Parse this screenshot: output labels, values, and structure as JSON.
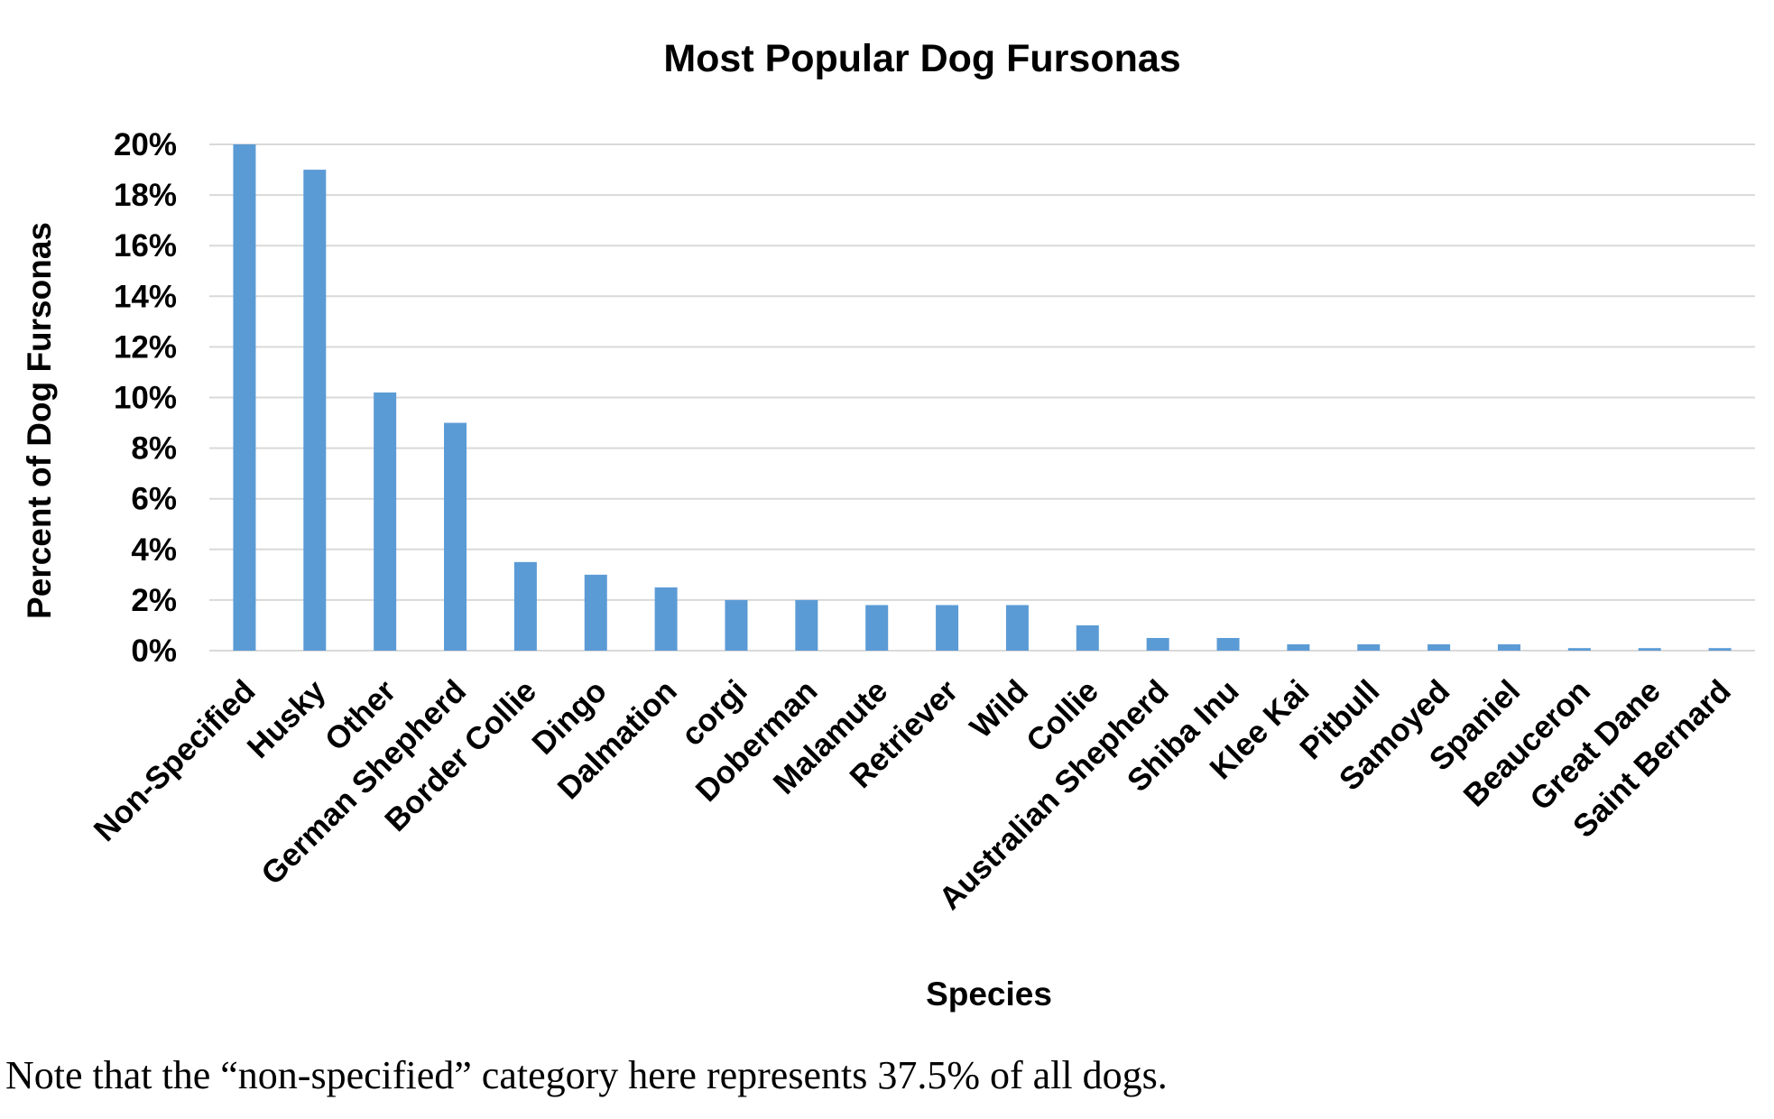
{
  "chart_data": {
    "type": "bar",
    "title": "Most Popular Dog Fursonas",
    "xlabel": "Species",
    "ylabel": "Percent of Dog Fursonas",
    "ylim": [
      0,
      20
    ],
    "y_ticks": [
      "0%",
      "2%",
      "4%",
      "6%",
      "8%",
      "10%",
      "12%",
      "14%",
      "16%",
      "18%",
      "20%"
    ],
    "y_unit": "percent",
    "grid": true,
    "bar_color": "#5b9bd5",
    "categories": [
      "Non-Specified",
      "Husky",
      "Other",
      "German Shepherd",
      "Border Collie",
      "Dingo",
      "Dalmation",
      "corgi",
      "Doberman",
      "Malamute",
      "Retriever",
      "Wild",
      "Collie",
      "Australian Shepherd",
      "Shiba Inu",
      "Klee Kai",
      "Pitbull",
      "Samoyed",
      "Spaniel",
      "Beauceron",
      "Great Dane",
      "Saint Bernard"
    ],
    "values": [
      20,
      19,
      10.2,
      9,
      3.5,
      3,
      2.5,
      2,
      2,
      1.8,
      1.8,
      1.8,
      1,
      0.5,
      0.5,
      0.25,
      0.25,
      0.25,
      0.25,
      0.1,
      0.1,
      0.1
    ]
  },
  "note": "Note that the “non-specified” category here represents 37.5% of all dogs."
}
